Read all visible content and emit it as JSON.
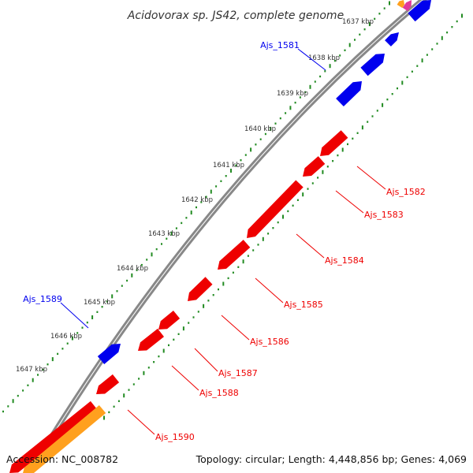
{
  "title": "Acidovorax sp. JS42, complete genome",
  "footer": {
    "accession": "Accession: NC_008782",
    "summary": "Topology: circular; Length: 4,448,856 bp; Genes: 4,069"
  },
  "colors": {
    "forward": "#0000ee",
    "reverse": "#ee0000",
    "orange": "#ffa01e",
    "magenta": "#e0399a",
    "backbone": "#888888",
    "gc_dots": "#228b22"
  },
  "ticks": [
    {
      "label": "1637 kbp"
    },
    {
      "label": "1638 kbp"
    },
    {
      "label": "1639 kbp"
    },
    {
      "label": "1640 kbp"
    },
    {
      "label": "1641 kbp"
    },
    {
      "label": "1642 kbp"
    },
    {
      "label": "1643 kbp"
    },
    {
      "label": "1644 kbp"
    },
    {
      "label": "1645 kbp"
    },
    {
      "label": "1646 kbp"
    },
    {
      "label": "1647 kbp"
    }
  ],
  "gene_labels": [
    {
      "name": "Ajs_1581",
      "strand": "forward"
    },
    {
      "name": "Ajs_1582",
      "strand": "reverse"
    },
    {
      "name": "Ajs_1583",
      "strand": "reverse"
    },
    {
      "name": "Ajs_1584",
      "strand": "reverse"
    },
    {
      "name": "Ajs_1585",
      "strand": "reverse"
    },
    {
      "name": "Ajs_1586",
      "strand": "reverse"
    },
    {
      "name": "Ajs_1587",
      "strand": "reverse"
    },
    {
      "name": "Ajs_1588",
      "strand": "reverse"
    },
    {
      "name": "Ajs_1589",
      "strand": "forward"
    },
    {
      "name": "Ajs_1590",
      "strand": "reverse"
    }
  ]
}
